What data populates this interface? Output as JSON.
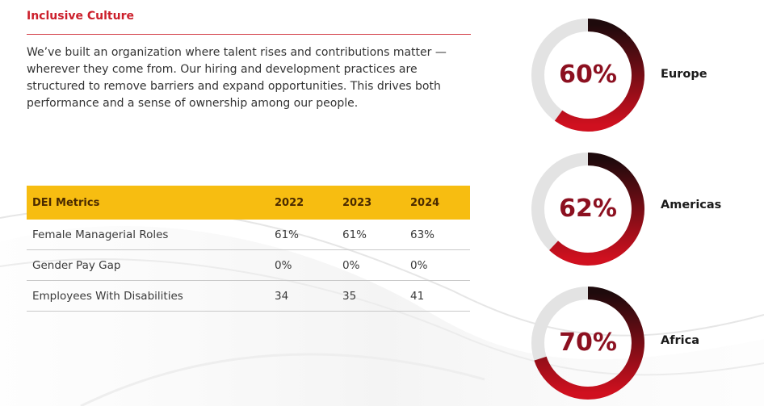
{
  "section": {
    "title": "Inclusive Culture",
    "intro": "We’ve built an organization where talent rises and contributions matter — wherever they come from. Our hiring and development practices are structured to remove barriers and expand opportunities. This drives both performance and a sense of ownership among our people."
  },
  "table": {
    "headers": [
      "DEI Metrics",
      "2022",
      "2023",
      "2024"
    ],
    "rows": [
      [
        "Female Managerial Roles",
        "61%",
        "61%",
        "63%"
      ],
      [
        "Gender Pay Gap",
        "0%",
        "0%",
        "0%"
      ],
      [
        "Employees With Disabilities",
        "34",
        "35",
        "41"
      ]
    ]
  },
  "regions": [
    {
      "label": "60%",
      "value": 60,
      "name": "Europe"
    },
    {
      "label": "62%",
      "value": 62,
      "name": "Americas"
    },
    {
      "label": "70%",
      "value": 70,
      "name": "Africa"
    }
  ],
  "colors": {
    "accent_red": "#cc1f2b",
    "header_yellow": "#f7bd11",
    "ring_dark": "#1e0a0c",
    "ring_red": "#d0101f",
    "ring_track": "#e3e3e3",
    "value_text": "#8c1020"
  }
}
